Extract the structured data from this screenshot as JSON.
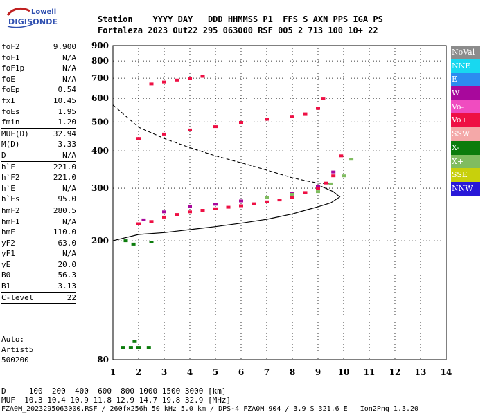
{
  "logo": {
    "line1": "Lowell",
    "line2": "DIGISONDE"
  },
  "header": {
    "labels": "Station    YYYY DAY   DDD HHMMSS P1  FFS S AXN PPS IGA PS",
    "values": "Fortaleza 2023 Out22 295 063000 RSF 005 2 713 100 10+ 22"
  },
  "params": [
    {
      "name": "foF2",
      "value": "9.900"
    },
    {
      "name": "foF1",
      "value": "N/A"
    },
    {
      "name": "foF1p",
      "value": "N/A"
    },
    {
      "name": "foE",
      "value": "N/A"
    },
    {
      "name": "foEp",
      "value": "0.54"
    },
    {
      "name": "fxI",
      "value": "10.45"
    },
    {
      "name": "foEs",
      "value": "1.95"
    },
    {
      "name": "fmin",
      "value": "1.20",
      "sep": true
    },
    {
      "name": "MUF(D)",
      "value": "32.94"
    },
    {
      "name": "M(D)",
      "value": "3.33"
    },
    {
      "name": "D",
      "value": "N/A",
      "sep": true
    },
    {
      "name": "h`F",
      "value": "221.0"
    },
    {
      "name": "h`F2",
      "value": "221.0"
    },
    {
      "name": "h`E",
      "value": "N/A"
    },
    {
      "name": "h`Es",
      "value": "95.0",
      "sep": true
    },
    {
      "name": "hmF2",
      "value": "280.5"
    },
    {
      "name": "hmF1",
      "value": "N/A"
    },
    {
      "name": "hmE",
      "value": "110.0"
    },
    {
      "name": "yF2",
      "value": "63.0"
    },
    {
      "name": "yF1",
      "value": "N/A"
    },
    {
      "name": "yE",
      "value": "20.0"
    },
    {
      "name": "B0",
      "value": "56.3"
    },
    {
      "name": "B1",
      "value": "3.13",
      "sep": true
    },
    {
      "name": "C-level",
      "value": "22",
      "sep": true
    }
  ],
  "auto": {
    "line1": "Auto:",
    "line2": "Artist5",
    "line3": "500200"
  },
  "legend": [
    {
      "label": "NoVal",
      "color": "#8c8c8c"
    },
    {
      "label": "NNE",
      "color": "#18d8f0"
    },
    {
      "label": "E",
      "color": "#2c8cf0"
    },
    {
      "label": "W",
      "color": "#a8089c"
    },
    {
      "label": "Vo-",
      "color": "#f04cc0"
    },
    {
      "label": "Vo+",
      "color": "#ee1044"
    },
    {
      "label": "SSW",
      "color": "#f4a8a8"
    },
    {
      "label": "X-",
      "color": "#0c7c0c"
    },
    {
      "label": "X+",
      "color": "#80bc60"
    },
    {
      "label": "SSE",
      "color": "#c8d00c"
    },
    {
      "label": "NNW",
      "color": "#2818d8"
    }
  ],
  "footer": {
    "line1": "D     100  200  400  600  800 1000 1500 3000 [km]",
    "line2": "MUF  10.3 10.4 10.9 11.8 12.9 14.7 19.8 32.9 [MHz]",
    "line3": "FZA0M_2023295063000.RSF / 260fx256h 50 kHz 5.0 km / DPS-4 FZA0M 904 / 3.9 S 321.6 E   Ion2Png 1.3.20"
  },
  "chart_data": {
    "type": "scatter",
    "xlim": [
      1,
      14
    ],
    "ylim": [
      80,
      900
    ],
    "x_ticks": [
      "1",
      "2",
      "3",
      "4",
      "5",
      "6",
      "7",
      "8",
      "9",
      "10",
      "11",
      "12",
      "13",
      "14"
    ],
    "y_ticks": [
      "80",
      "200",
      "300",
      "400",
      "500",
      "600",
      "700",
      "800",
      "900"
    ],
    "y_scale": "log",
    "grid": true,
    "legend_position": "right",
    "series": [
      {
        "name": "O-trace F2",
        "color": "#ee1044",
        "points": [
          [
            2.0,
            228
          ],
          [
            2.5,
            232
          ],
          [
            3.0,
            240
          ],
          [
            3.5,
            245
          ],
          [
            4.0,
            250
          ],
          [
            4.5,
            253
          ],
          [
            5.0,
            256
          ],
          [
            5.5,
            259
          ],
          [
            6.0,
            262
          ],
          [
            6.5,
            266
          ],
          [
            7.0,
            270
          ],
          [
            7.5,
            274
          ],
          [
            8.0,
            280
          ],
          [
            8.5,
            290
          ],
          [
            9.0,
            300
          ],
          [
            9.3,
            312
          ],
          [
            9.6,
            330
          ],
          [
            9.9,
            385
          ]
        ]
      },
      {
        "name": "O-trace F2 upper",
        "color": "#a8089c",
        "points": [
          [
            2.2,
            235
          ],
          [
            3.0,
            250
          ],
          [
            4.0,
            260
          ],
          [
            5.0,
            265
          ],
          [
            6.0,
            272
          ],
          [
            7.0,
            280
          ],
          [
            8.0,
            288
          ],
          [
            9.0,
            305
          ],
          [
            9.6,
            340
          ]
        ]
      },
      {
        "name": "X-trace F2",
        "color": "#80bc60",
        "points": [
          [
            7.0,
            280
          ],
          [
            8.0,
            286
          ],
          [
            9.0,
            292
          ],
          [
            9.5,
            310
          ],
          [
            10.0,
            330
          ],
          [
            10.3,
            375
          ]
        ]
      },
      {
        "name": "2nd hop",
        "color": "#ee1044",
        "points": [
          [
            2.0,
            440
          ],
          [
            3.0,
            455
          ],
          [
            4.0,
            470
          ],
          [
            5.0,
            482
          ],
          [
            6.0,
            498
          ],
          [
            7.0,
            510
          ],
          [
            8.0,
            522
          ],
          [
            8.5,
            532
          ],
          [
            9.0,
            555
          ],
          [
            9.2,
            600
          ]
        ]
      },
      {
        "name": "3rd hop",
        "color": "#ee1044",
        "points": [
          [
            2.5,
            670
          ],
          [
            3.0,
            680
          ],
          [
            3.5,
            690
          ],
          [
            4.0,
            700
          ],
          [
            4.5,
            710
          ]
        ]
      },
      {
        "name": "Es",
        "color": "#0c7c0c",
        "points": [
          [
            1.5,
            200
          ],
          [
            1.8,
            195
          ],
          [
            2.5,
            198
          ],
          [
            1.4,
            88
          ],
          [
            1.7,
            88
          ],
          [
            2.0,
            88
          ],
          [
            2.4,
            88
          ],
          [
            1.85,
            92
          ]
        ]
      }
    ],
    "profile_solid": [
      [
        1,
        200
      ],
      [
        2,
        210
      ],
      [
        3,
        213
      ],
      [
        4,
        218
      ],
      [
        5,
        223
      ],
      [
        6,
        229
      ],
      [
        7,
        236
      ],
      [
        8,
        246
      ],
      [
        8.5,
        253
      ],
      [
        9,
        260
      ],
      [
        9.5,
        268
      ],
      [
        9.85,
        280.5
      ],
      [
        9.6,
        292
      ],
      [
        9.1,
        305
      ]
    ],
    "profile_dashed": [
      [
        1,
        570
      ],
      [
        2,
        480
      ],
      [
        3,
        440
      ],
      [
        4,
        410
      ],
      [
        5,
        385
      ],
      [
        6,
        365
      ],
      [
        7,
        345
      ],
      [
        8,
        325
      ],
      [
        8.5,
        318
      ],
      [
        9,
        312
      ],
      [
        9.5,
        310
      ]
    ]
  }
}
